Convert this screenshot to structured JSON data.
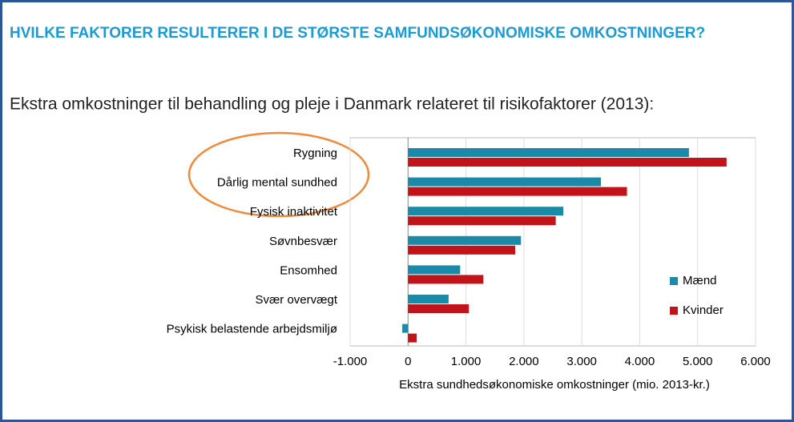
{
  "chart_data": {
    "type": "hbar",
    "title": "HVILKE FAKTORER RESULTERER I DE STØRSTE SAMFUNDSØKONOMISKE OMKOSTNINGER?",
    "subtitle": "Ekstra omkostninger til behandling og pleje i Danmark relateret til risikofaktorer (2013):",
    "categories": [
      "Rygning",
      "Dårlig mental sundhed",
      "Fysisk inaktivitet",
      "Søvnbesvær",
      "Ensomhed",
      "Svær overvægt",
      "Psykisk belastende arbejdsmiljø"
    ],
    "series": [
      {
        "name": "Mænd",
        "color": "#1b8aa6",
        "values": [
          4850,
          3330,
          2680,
          1950,
          900,
          700,
          -100
        ]
      },
      {
        "name": "Kvinder",
        "color": "#c0141a",
        "values": [
          5500,
          3780,
          2550,
          1850,
          1300,
          1050,
          150
        ]
      }
    ],
    "xlim": [
      -1000,
      6000
    ],
    "xticks": [
      {
        "value": -1000,
        "label": "-1.000"
      },
      0,
      {
        "value": 1000,
        "label": "1.000"
      },
      {
        "value": 2000,
        "label": "2.000"
      },
      {
        "value": 3000,
        "label": "3.000"
      },
      {
        "value": 4000,
        "label": "4.000"
      },
      {
        "value": 5000,
        "label": "5.000"
      },
      {
        "value": 6000,
        "label": "6.000"
      }
    ],
    "xlabel": "Ekstra sundhedsøkonomiske omkostninger (mio. 2013-kr.)",
    "grid": true,
    "legend": "right"
  }
}
